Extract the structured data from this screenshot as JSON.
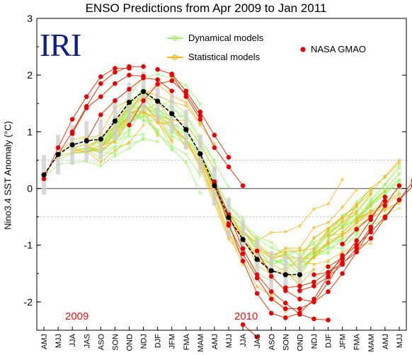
{
  "chart_data": {
    "type": "line",
    "title": "ENSO Predictions from Apr 2009 to Jan 2011",
    "ylabel": "Nino3.4 SST Anomaly (°C)",
    "xlabel": "",
    "ylim": [
      -2.5,
      3
    ],
    "yticks": [
      -2,
      -1,
      0,
      1,
      2,
      3
    ],
    "grid": false,
    "categories": [
      "AMJ",
      "MJJ",
      "JJA",
      "JAS",
      "ASO",
      "SON",
      "OND",
      "NDJ",
      "DJF",
      "JFM",
      "FMA",
      "MAM",
      "AMJ",
      "MJJ",
      "JJA",
      "JAS",
      "ASO",
      "SON",
      "OND",
      "NDJ",
      "DJF",
      "JFM",
      "FMA",
      "MAM",
      "AMJ",
      "MJJ"
    ],
    "legend": {
      "placement": "top",
      "entries": [
        {
          "name": "Dynamical models",
          "color": "#9cf56a"
        },
        {
          "name": "Statistical models",
          "color": "#f5b71c"
        },
        {
          "name": "NASA GMAO",
          "color": "#e60000"
        }
      ]
    },
    "annotations": {
      "logo": "IRI",
      "year_1": "2009",
      "year_2": "2010"
    },
    "observed": {
      "name": "",
      "color": "#000000",
      "start_index": 0,
      "values": [
        0.24,
        0.6,
        0.77,
        0.84,
        0.87,
        1.19,
        1.52,
        1.71,
        1.54,
        1.32,
        1.04,
        0.61,
        0.05,
        -0.51,
        -0.9,
        -1.25,
        -1.45,
        -1.52,
        -1.52
      ]
    },
    "nasa_gmao": [
      {
        "start_index": 0,
        "values": [
          0.17,
          0.72,
          1.22,
          1.62,
          1.97,
          2.12,
          2.12
        ]
      },
      {
        "start_index": 1,
        "values": [
          0.6,
          1.0,
          1.45,
          1.85,
          2.05,
          2.15,
          2.15
        ]
      },
      {
        "start_index": 2,
        "values": [
          0.97,
          1.42,
          1.62,
          1.85,
          2.0,
          1.98
        ]
      },
      {
        "start_index": 3,
        "values": [
          0.85,
          1.3,
          1.55,
          1.75,
          1.95,
          1.92,
          1.72
        ]
      },
      {
        "start_index": 6,
        "values": [
          1.12,
          1.55,
          1.84,
          1.9,
          1.67,
          1.28
        ]
      },
      {
        "start_index": 8,
        "values": [
          2.1,
          2.02,
          1.72,
          1.35,
          0.94,
          0.55
        ]
      },
      {
        "start_index": 9,
        "values": [
          2.0,
          1.62,
          1.22,
          0.72,
          0.38,
          0.05
        ]
      },
      {
        "start_index": 12,
        "values": [
          0.12,
          -0.46,
          -1.06,
          -1.52,
          -1.82,
          -2.02,
          -2.22,
          -2.3,
          -2.32
        ]
      },
      {
        "start_index": 12,
        "values": [
          0.1,
          -0.65,
          -1.15,
          -1.58,
          -1.95,
          -2.12,
          -2.12,
          -2.0,
          -1.66,
          -1.25
        ]
      },
      {
        "start_index": 13,
        "values": [
          -0.62,
          -1.28,
          -1.85,
          -2.2,
          -2.28,
          -2.2,
          -1.95,
          -1.55,
          -1.18
        ]
      },
      {
        "start_index": 14,
        "values": [
          -2.4,
          -2.62
        ]
      },
      {
        "start_index": 15,
        "values": [
          -1.1,
          -1.55,
          -1.8,
          -1.95,
          -2.0,
          -1.82,
          -1.5,
          -1.12,
          -0.72
        ]
      },
      {
        "start_index": 17,
        "values": [
          -1.75,
          -1.72,
          -1.65,
          -1.48,
          -1.24,
          -0.92,
          -0.55,
          -0.15
        ]
      },
      {
        "start_index": 18,
        "values": [
          -1.8,
          -1.72,
          -1.56,
          -1.34,
          -1.05,
          -0.68,
          -0.3,
          0.05
        ]
      },
      {
        "start_index": 19,
        "values": [
          -1.52,
          -1.48,
          -1.32,
          -1.12,
          -0.88,
          -0.52,
          -0.2,
          0.14
        ]
      },
      {
        "start_index": 20,
        "values": [
          -1.38,
          -1.22,
          -1.0,
          -0.77,
          -0.5,
          -0.2,
          0.05
        ]
      },
      {
        "start_index": 21,
        "values": [
          -0.98,
          -0.72,
          -0.5,
          -0.22
        ]
      }
    ]
  }
}
